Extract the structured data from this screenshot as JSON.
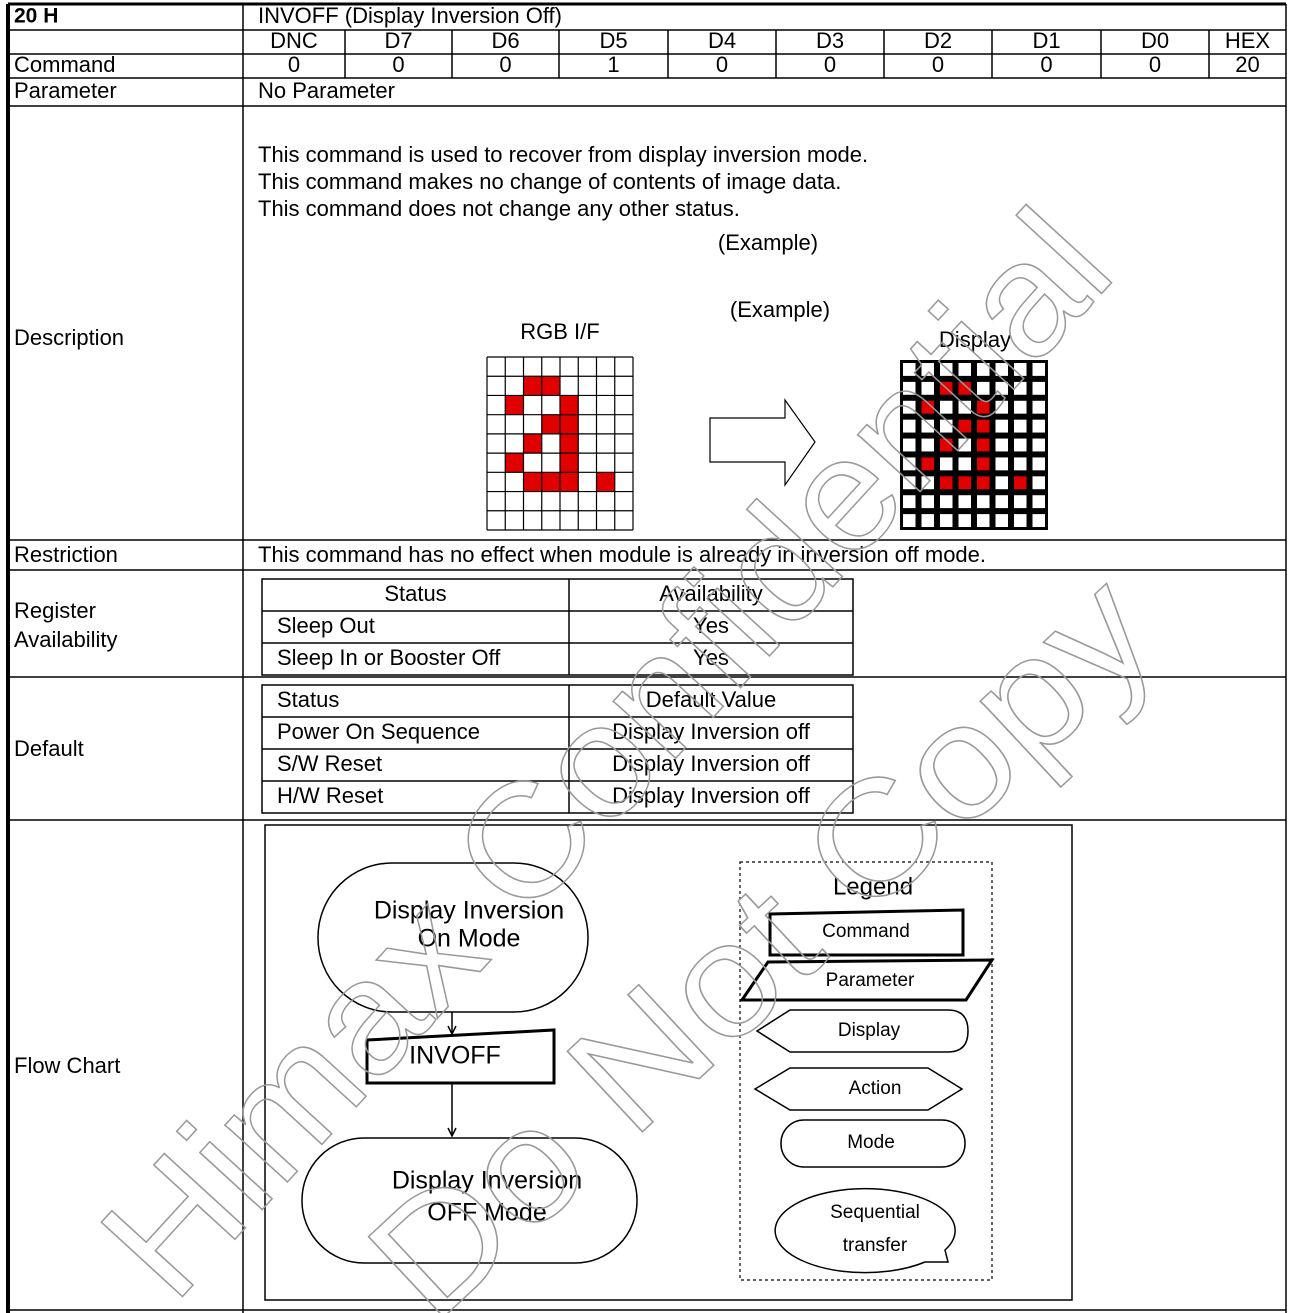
{
  "header": {
    "code": "20 H",
    "name": "INVOFF (Display Inversion Off)"
  },
  "bits": {
    "columns": [
      "DNC",
      "D7",
      "D6",
      "D5",
      "D4",
      "D3",
      "D2",
      "D1",
      "D0",
      "HEX"
    ],
    "label": "Command",
    "values": [
      0,
      0,
      0,
      1,
      0,
      0,
      0,
      0,
      0,
      20
    ]
  },
  "parameter": {
    "label": "Parameter",
    "text": "No Parameter"
  },
  "description": {
    "label": "Description",
    "lines": [
      "This command is used to recover from display inversion mode.",
      "This command makes no change of contents of image data.",
      "This command does not change any other status."
    ],
    "example_labels": [
      "(Example)",
      "(Example)"
    ],
    "source_label": "RGB I/F",
    "target_label": "Display"
  },
  "restriction": {
    "label": "Restriction",
    "text": "This command has no effect when module is already in inversion off mode."
  },
  "register_availability": {
    "label": [
      "Register",
      "Availability"
    ],
    "header": [
      "Status",
      "Availability"
    ],
    "rows": [
      [
        "Sleep Out",
        "Yes"
      ],
      [
        "Sleep In or Booster Off",
        "Yes"
      ]
    ]
  },
  "default": {
    "label": "Default",
    "header": [
      "Status",
      "Default Value"
    ],
    "rows": [
      [
        "Power On Sequence",
        "Display Inversion off"
      ],
      [
        "S/W Reset",
        "Display Inversion off"
      ],
      [
        "H/W Reset",
        "Display Inversion off"
      ]
    ]
  },
  "flow_chart": {
    "label": "Flow Chart",
    "nodes": [
      {
        "lines": [
          "Display Inversion",
          "On Mode"
        ]
      },
      {
        "lines": [
          "INVOFF"
        ]
      },
      {
        "lines": [
          "Display Inversion",
          "OFF Mode"
        ]
      }
    ],
    "legend": {
      "title": "Legend",
      "items": [
        {
          "lines": [
            "Command"
          ]
        },
        {
          "lines": [
            "Parameter"
          ]
        },
        {
          "lines": [
            "Display"
          ]
        },
        {
          "lines": [
            "Action"
          ]
        },
        {
          "lines": [
            "Mode"
          ]
        },
        {
          "lines": [
            "Sequential",
            "transfer"
          ]
        }
      ]
    }
  },
  "watermark": [
    "Himax Confidential",
    "Do Not Copy"
  ]
}
